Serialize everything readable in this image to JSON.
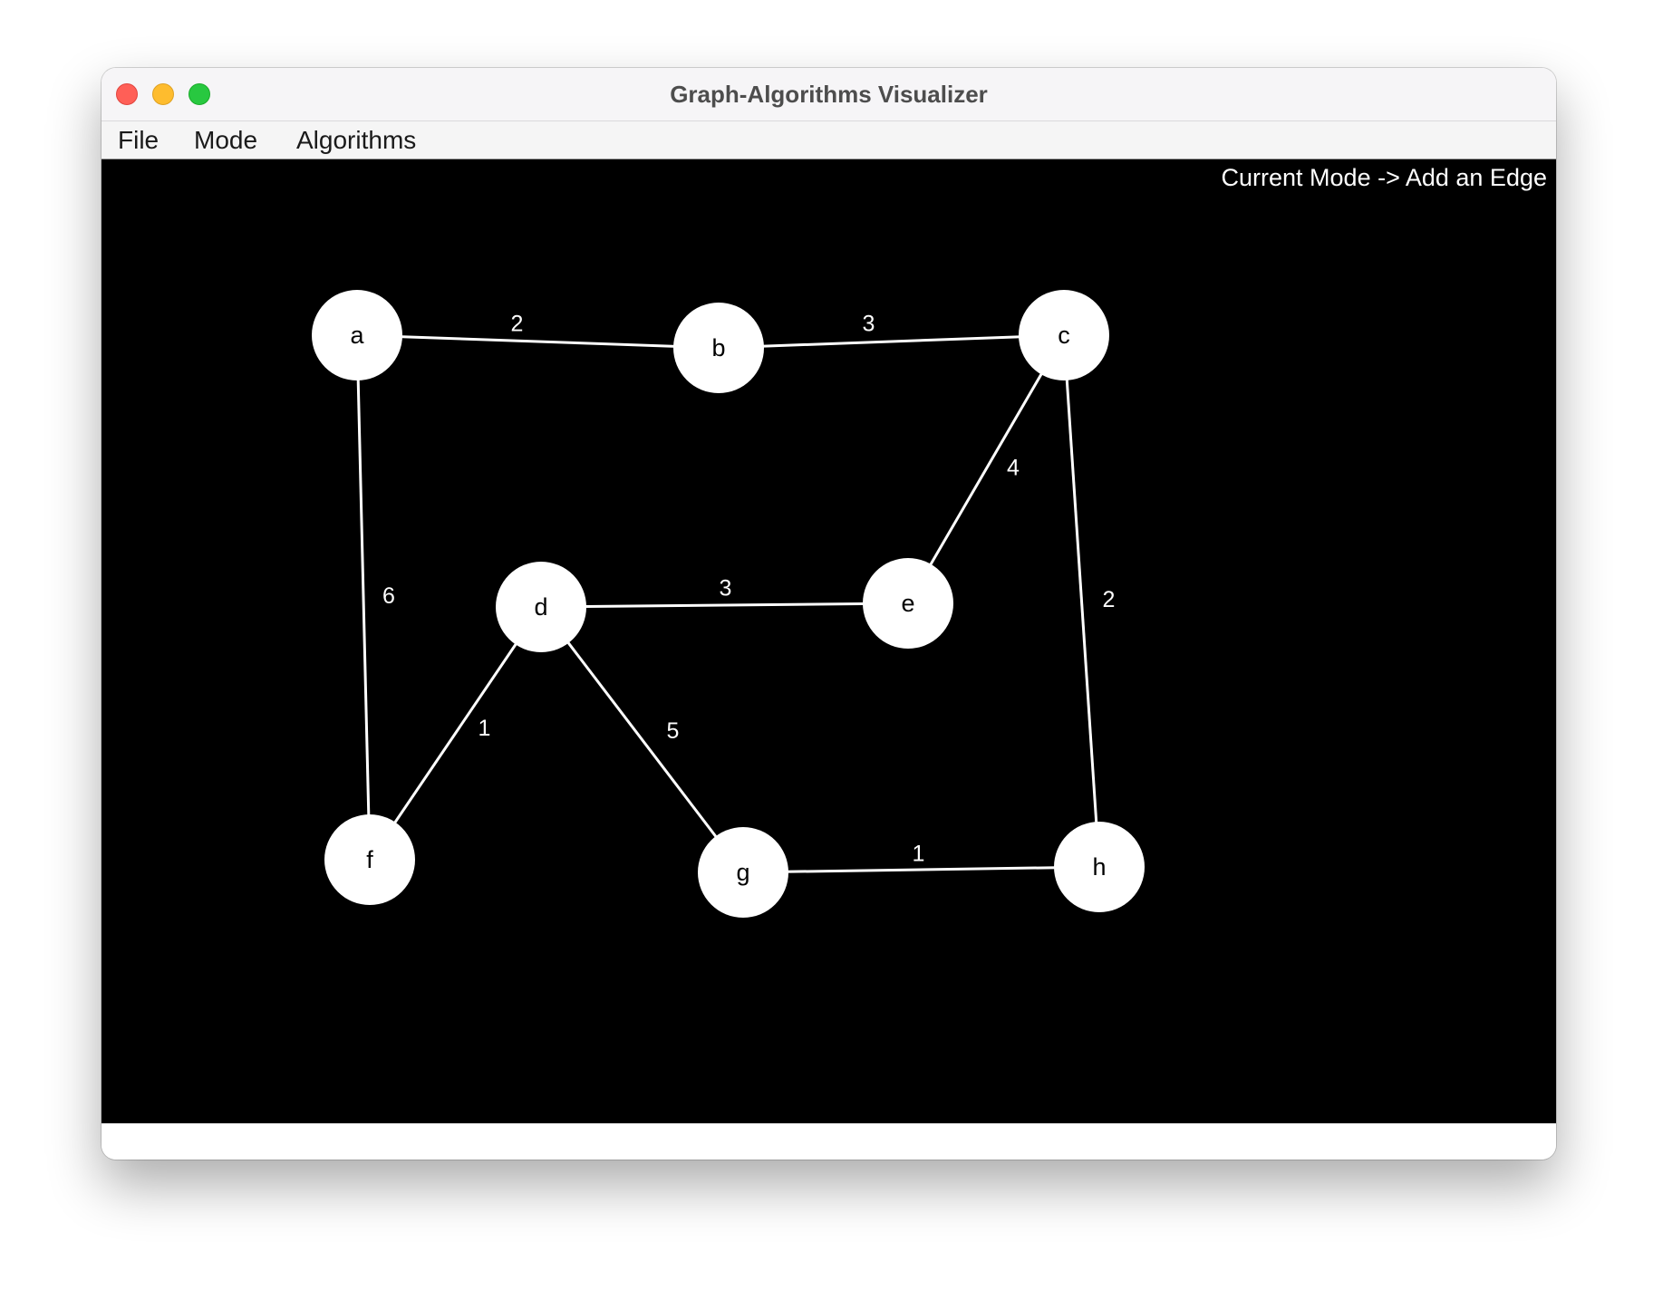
{
  "window": {
    "title": "Graph-Algorithms Visualizer"
  },
  "menu": {
    "file": "File",
    "mode": "Mode",
    "algorithms": "Algorithms"
  },
  "canvas": {
    "mode_label": "Current Mode -> Add an Edge",
    "background": "#000000",
    "node_color": "#ffffff",
    "edge_color": "#ffffff"
  },
  "graph": {
    "nodes": [
      {
        "id": "a",
        "label": "a"
      },
      {
        "id": "b",
        "label": "b"
      },
      {
        "id": "c",
        "label": "c"
      },
      {
        "id": "d",
        "label": "d"
      },
      {
        "id": "e",
        "label": "e"
      },
      {
        "id": "f",
        "label": "f"
      },
      {
        "id": "g",
        "label": "g"
      },
      {
        "id": "h",
        "label": "h"
      }
    ],
    "edges": [
      {
        "from": "a",
        "to": "b",
        "weight": "2"
      },
      {
        "from": "b",
        "to": "c",
        "weight": "3"
      },
      {
        "from": "c",
        "to": "e",
        "weight": "4"
      },
      {
        "from": "c",
        "to": "h",
        "weight": "2"
      },
      {
        "from": "a",
        "to": "f",
        "weight": "6"
      },
      {
        "from": "d",
        "to": "e",
        "weight": "3"
      },
      {
        "from": "d",
        "to": "f",
        "weight": "1"
      },
      {
        "from": "d",
        "to": "g",
        "weight": "5"
      },
      {
        "from": "g",
        "to": "h",
        "weight": "1"
      }
    ]
  }
}
